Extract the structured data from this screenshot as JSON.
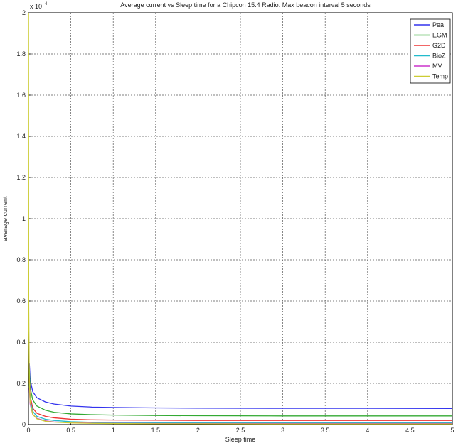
{
  "chart_data": {
    "type": "line",
    "title": "Average current vs Sleep time for a Chipcon 15.4 Radio: Max beacon interval 5 seconds",
    "xlabel": "Sleep time",
    "ylabel": "average current",
    "y_exponent_label": "x 10",
    "y_exponent_power": "4",
    "xlim": [
      0,
      5
    ],
    "ylim": [
      0,
      2
    ],
    "x_ticks": [
      "0",
      "0.5",
      "1",
      "1.5",
      "2",
      "2.5",
      "3",
      "3.5",
      "4",
      "4.5",
      "5"
    ],
    "y_ticks": [
      "0",
      "0.2",
      "0.4",
      "0.6",
      "0.8",
      "1",
      "1.2",
      "1.4",
      "1.6",
      "1.8",
      "2"
    ],
    "grid": true,
    "legend_position": "top-right",
    "series": [
      {
        "name": "Pea",
        "color": "#3333ee",
        "x": [
          0.01,
          0.02,
          0.05,
          0.1,
          0.2,
          0.3,
          0.5,
          0.75,
          1,
          1.5,
          2,
          3,
          4,
          5
        ],
        "y": [
          0.3,
          0.22,
          0.16,
          0.13,
          0.11,
          0.1,
          0.09,
          0.085,
          0.083,
          0.081,
          0.08,
          0.079,
          0.079,
          0.078
        ]
      },
      {
        "name": "EGM",
        "color": "#33aa33",
        "x": [
          0.01,
          0.02,
          0.05,
          0.1,
          0.2,
          0.3,
          0.5,
          0.75,
          1,
          1.5,
          2,
          3,
          4,
          5
        ],
        "y": [
          0.27,
          0.18,
          0.12,
          0.09,
          0.07,
          0.06,
          0.052,
          0.048,
          0.046,
          0.044,
          0.043,
          0.042,
          0.042,
          0.042
        ]
      },
      {
        "name": "G2D",
        "color": "#ee3333",
        "x": [
          0.01,
          0.02,
          0.05,
          0.1,
          0.2,
          0.3,
          0.5,
          0.75,
          1,
          1.5,
          2,
          3,
          4,
          5
        ],
        "y": [
          0.22,
          0.14,
          0.08,
          0.055,
          0.04,
          0.033,
          0.026,
          0.023,
          0.022,
          0.021,
          0.02,
          0.02,
          0.02,
          0.02
        ]
      },
      {
        "name": "BioZ",
        "color": "#22bbcc",
        "x": [
          0.01,
          0.02,
          0.05,
          0.1,
          0.2,
          0.3,
          0.5,
          0.75,
          1,
          1.5,
          2,
          3,
          4,
          5
        ],
        "y": [
          0.2,
          0.12,
          0.065,
          0.04,
          0.026,
          0.02,
          0.014,
          0.011,
          0.01,
          0.009,
          0.009,
          0.008,
          0.008,
          0.008
        ]
      },
      {
        "name": "MV",
        "color": "#cc33cc",
        "x": [
          0.01,
          0.02,
          0.05,
          0.1,
          0.2,
          0.3,
          0.5,
          0.75,
          1,
          1.5,
          2,
          3,
          4,
          5
        ],
        "y": [
          0.18,
          0.1,
          0.05,
          0.03,
          0.018,
          0.013,
          0.009,
          0.007,
          0.006,
          0.005,
          0.005,
          0.005,
          0.005,
          0.005
        ]
      },
      {
        "name": "Temp",
        "color": "#cccc33",
        "x": [
          0.001,
          0.003,
          0.01,
          0.02,
          0.05,
          0.1,
          0.2,
          0.3,
          0.5,
          0.75,
          1,
          1.5,
          2,
          3,
          4,
          5
        ],
        "y": [
          2.0,
          0.6,
          0.2,
          0.11,
          0.05,
          0.028,
          0.016,
          0.012,
          0.008,
          0.006,
          0.005,
          0.004,
          0.004,
          0.003,
          0.003,
          0.003
        ]
      }
    ]
  }
}
